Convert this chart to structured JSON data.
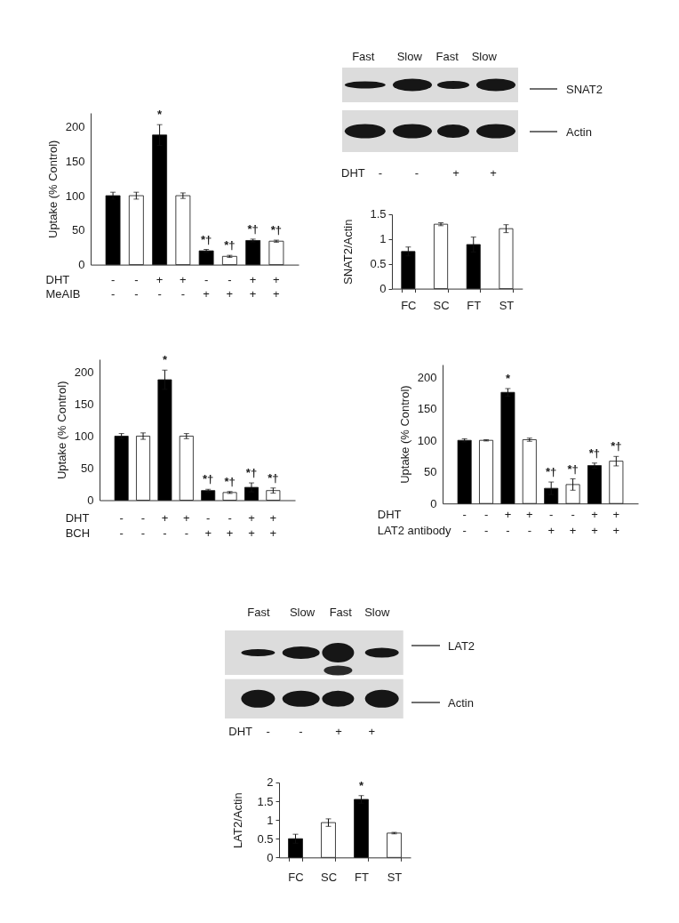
{
  "chart_data": [
    {
      "type": "bar",
      "categories": [
        "-\n-",
        "-\n-",
        "+\n-",
        "+\n-",
        "-\n+",
        "-\n+",
        "+\n+",
        "+\n+"
      ],
      "values": [
        100,
        100,
        188,
        100,
        20,
        12,
        35,
        34
      ],
      "colors": [
        "#000000",
        "#ffffff",
        "#000000",
        "#ffffff",
        "#000000",
        "#ffffff",
        "#000000",
        "#ffffff"
      ],
      "errors": [
        5,
        5,
        15,
        4,
        2,
        1.5,
        2,
        1.5
      ],
      "value_labels": [
        null,
        null,
        "*",
        null,
        "*†",
        "*†",
        "*†",
        "*†"
      ],
      "ylabel": "Uptake (% Control)",
      "ylim": [
        0,
        220
      ],
      "yticks": [
        0,
        50,
        100,
        150,
        200
      ],
      "annotations": [
        "DHT",
        "MeAIB"
      ]
    },
    {
      "type": "other",
      "categories": [
        "Fast",
        "Slow",
        "Fast",
        "Slow"
      ],
      "y_categories": [
        "SNAT2",
        "Actin"
      ],
      "annotations": [
        "DHT",
        "-",
        "-",
        "+",
        "+"
      ]
    },
    {
      "type": "bar",
      "categories": [
        "FC",
        "SC",
        "FT",
        "ST"
      ],
      "values": [
        0.75,
        1.3,
        0.89,
        1.21
      ],
      "colors": [
        "#000000",
        "#ffffff",
        "#000000",
        "#ffffff"
      ],
      "errors": [
        0.09,
        0.03,
        0.15,
        0.08
      ],
      "ylabel": "SNAT2/Actin",
      "ylim": [
        0,
        1.5
      ],
      "yticks": [
        0,
        0.5,
        1,
        1.5
      ]
    },
    {
      "type": "bar",
      "categories": [
        "-\n-",
        "-\n-",
        "+\n-",
        "+\n-",
        "-\n+",
        "-\n+",
        "+\n+",
        "+\n+"
      ],
      "values": [
        100,
        100,
        188,
        100,
        15,
        12,
        20,
        15
      ],
      "colors": [
        "#000000",
        "#ffffff",
        "#000000",
        "#ffffff",
        "#000000",
        "#ffffff",
        "#000000",
        "#ffffff"
      ],
      "errors": [
        4,
        5,
        15,
        4,
        2,
        1.5,
        7,
        4
      ],
      "value_labels": [
        null,
        null,
        "*",
        null,
        "*†",
        "*†",
        "*†",
        "*†"
      ],
      "ylabel": "Uptake (% Control)",
      "ylim": [
        0,
        220
      ],
      "yticks": [
        0,
        50,
        100,
        150,
        200
      ],
      "annotations": [
        "DHT",
        "BCH"
      ]
    },
    {
      "type": "bar",
      "categories": [
        "-\n-",
        "-\n-",
        "+\n-",
        "+\n-",
        "-\n+",
        "-\n+",
        "+\n+",
        "+\n+"
      ],
      "values": [
        100,
        100,
        176,
        101,
        24,
        30,
        60,
        67
      ],
      "colors": [
        "#000000",
        "#ffffff",
        "#000000",
        "#ffffff",
        "#000000",
        "#ffffff",
        "#000000",
        "#ffffff"
      ],
      "errors": [
        2.5,
        1,
        6,
        2.5,
        10,
        9,
        4,
        7.5
      ],
      "value_labels": [
        null,
        null,
        "*",
        null,
        "*†",
        "*†",
        "*†",
        "*†"
      ],
      "ylabel": "Uptake (% Control)",
      "ylim": [
        0,
        220
      ],
      "yticks": [
        0,
        50,
        100,
        150,
        200
      ],
      "annotations": [
        "DHT",
        "LAT2 antibody"
      ]
    },
    {
      "type": "other",
      "categories": [
        "Fast",
        "Slow",
        "Fast",
        "Slow"
      ],
      "y_categories": [
        "LAT2",
        "Actin"
      ],
      "annotations": [
        "DHT",
        "-",
        "-",
        "+",
        "+"
      ]
    },
    {
      "type": "bar",
      "categories": [
        "FC",
        "SC",
        "FT",
        "ST"
      ],
      "values": [
        0.5,
        0.93,
        1.55,
        0.65
      ],
      "colors": [
        "#000000",
        "#ffffff",
        "#000000",
        "#ffffff"
      ],
      "errors": [
        0.12,
        0.1,
        0.1,
        0.02
      ],
      "value_labels": [
        null,
        null,
        "*",
        null
      ],
      "ylabel": "LAT2/Actin",
      "ylim": [
        0,
        2
      ],
      "yticks": [
        0,
        0.5,
        1,
        1.5,
        2
      ]
    }
  ]
}
